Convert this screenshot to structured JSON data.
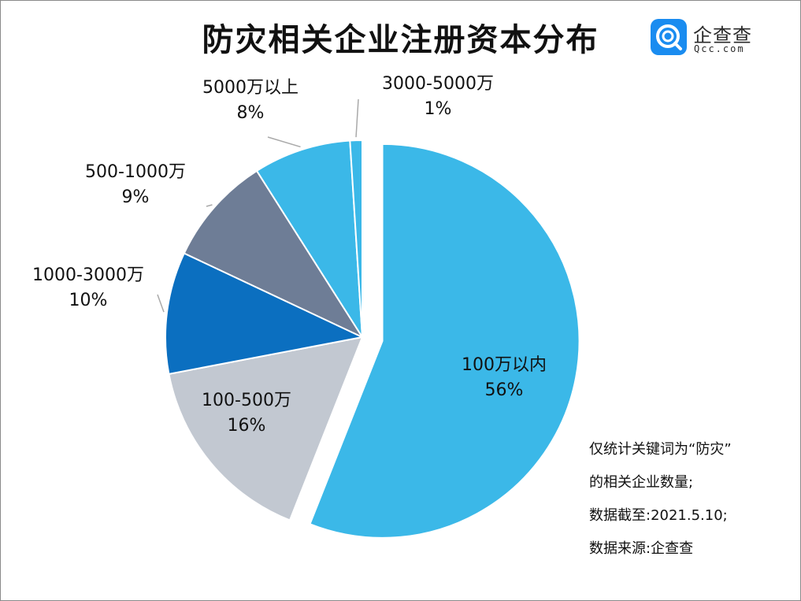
{
  "title": "防灾相关企业注册资本分布",
  "logo": {
    "name": "企查查",
    "domain": "Qcc.com",
    "icon": "qcc-logo-icon"
  },
  "notes": [
    "仅统计关键词为“防灾”",
    "的相关企业数量;",
    "数据截至:2021.5.10;",
    "数据来源:企查查"
  ],
  "chart_data": {
    "type": "pie",
    "title": "防灾相关企业注册资本分布",
    "categories": [
      "100万以内",
      "100-500万",
      "1000-3000万",
      "500-1000万",
      "5000万以上",
      "3000-5000万"
    ],
    "values": [
      56,
      16,
      10,
      9,
      8,
      1
    ],
    "labels_percent": [
      "56%",
      "16%",
      "10%",
      "9%",
      "8%",
      "1%"
    ],
    "colors": [
      "#3bb8e8",
      "#c2c8d1",
      "#0b6fc0",
      "#6e7d96",
      "#3bb8e8",
      "#3bb8e8"
    ],
    "exploded": "100万以内",
    "legend": "none (labels beside slices)"
  }
}
